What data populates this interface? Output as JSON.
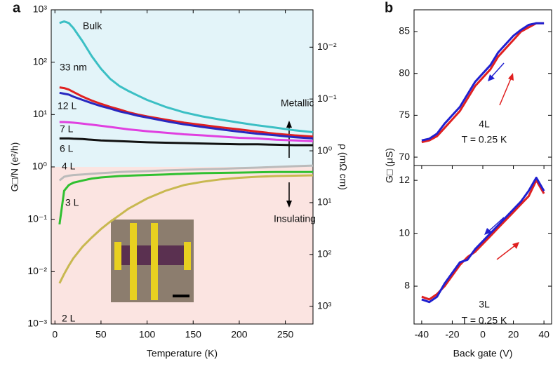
{
  "chart_data": [
    {
      "type": "line",
      "panel_label": "a",
      "x_label": "Temperature (K)",
      "y_label": "G□/N (e²/h)",
      "y2_label": "ρ (mΩ cm)",
      "ylog": true,
      "y2log": true,
      "y2_inverted": true,
      "xlim": [
        -4,
        280
      ],
      "ylim": [
        0.001,
        1000
      ],
      "y2lim": [
        0.0019,
        2200
      ],
      "xticks": [
        0,
        50,
        100,
        150,
        200,
        250
      ],
      "yticks": [
        {
          "value": 0.001,
          "label": "10⁻³"
        },
        {
          "value": 0.01,
          "label": "10⁻²"
        },
        {
          "value": 0.1,
          "label": "10⁻¹"
        },
        {
          "value": 1,
          "label": "10⁰"
        },
        {
          "value": 10,
          "label": "10¹"
        },
        {
          "value": 100,
          "label": "10²"
        },
        {
          "value": 1000,
          "label": "10³"
        }
      ],
      "y2ticks": [
        {
          "value": 0.01,
          "label": "10⁻²"
        },
        {
          "value": 0.1,
          "label": "10⁻¹"
        },
        {
          "value": 1,
          "label": "10⁰"
        },
        {
          "value": 10,
          "label": "10¹"
        },
        {
          "value": 100,
          "label": "10²"
        },
        {
          "value": 1000,
          "label": "10³"
        }
      ],
      "annotations": [
        "Metallic",
        "Insulating"
      ],
      "x": [
        5,
        10,
        15,
        20,
        30,
        40,
        50,
        60,
        70,
        80,
        90,
        100,
        120,
        140,
        160,
        180,
        200,
        220,
        240,
        260,
        280
      ],
      "series": [
        {
          "name": "Bulk",
          "color": "#3bbfc4",
          "values": [
            560,
            600,
            560,
            450,
            250,
            130,
            75,
            48,
            35,
            28,
            23,
            19,
            14,
            11,
            9.2,
            8,
            7,
            6.2,
            5.6,
            5,
            4.6
          ]
        },
        {
          "name": "33 nm",
          "color": "#e02020",
          "values": [
            33,
            32,
            30,
            27,
            22,
            18.5,
            16,
            14,
            12.5,
            11,
            10,
            9.2,
            8,
            7,
            6.3,
            5.7,
            5.2,
            4.7,
            4.3,
            4.0,
            3.8
          ]
        },
        {
          "name": "12 L",
          "color": "#2828c0",
          "values": [
            26,
            25,
            24,
            22,
            19,
            16.5,
            14.5,
            13,
            11.5,
            10.5,
            9.5,
            8.8,
            7.5,
            6.5,
            5.8,
            5.2,
            4.7,
            4.3,
            4,
            3.7,
            3.5
          ]
        },
        {
          "name": "7 L",
          "color": "#e040e0",
          "values": [
            7.2,
            7.2,
            7.1,
            7,
            6.7,
            6.4,
            6.1,
            5.8,
            5.5,
            5.2,
            5,
            4.8,
            4.5,
            4.2,
            4,
            3.8,
            3.6,
            3.5,
            3.3,
            3.2,
            3.1
          ]
        },
        {
          "name": "6 L",
          "color": "#111111",
          "values": [
            3.5,
            3.5,
            3.5,
            3.45,
            3.4,
            3.3,
            3.2,
            3.15,
            3.1,
            3.05,
            3,
            2.95,
            2.9,
            2.85,
            2.8,
            2.75,
            2.7,
            2.7,
            2.65,
            2.6,
            2.6
          ]
        },
        {
          "name": "4 L",
          "color": "#bbbbbb",
          "values": [
            0.55,
            0.65,
            0.68,
            0.7,
            0.72,
            0.74,
            0.76,
            0.78,
            0.8,
            0.81,
            0.82,
            0.83,
            0.86,
            0.88,
            0.9,
            0.92,
            0.95,
            0.97,
            1.0,
            1.03,
            1.06
          ]
        },
        {
          "name": "3 L",
          "color": "#30c030",
          "values": [
            0.08,
            0.35,
            0.45,
            0.5,
            0.55,
            0.6,
            0.63,
            0.65,
            0.67,
            0.68,
            0.69,
            0.7,
            0.72,
            0.74,
            0.76,
            0.77,
            0.78,
            0.79,
            0.8,
            0.8,
            0.8
          ]
        },
        {
          "name": "2 L",
          "color": "#c8b850",
          "values": [
            0.006,
            0.009,
            0.013,
            0.018,
            0.03,
            0.045,
            0.065,
            0.09,
            0.12,
            0.16,
            0.2,
            0.25,
            0.35,
            0.45,
            0.52,
            0.58,
            0.62,
            0.65,
            0.67,
            0.68,
            0.69
          ]
        }
      ]
    },
    {
      "type": "line",
      "panel_label": "b",
      "y_label": "G□ (μS)",
      "xlim": [
        -45,
        45
      ],
      "ylim": [
        69,
        87.6
      ],
      "yticks": [
        70,
        75,
        80,
        85
      ],
      "annotations": [
        "4L",
        "T = 0.25 K"
      ],
      "x": [
        -40,
        -35,
        -30,
        -25,
        -20,
        -15,
        -10,
        -5,
        0,
        5,
        10,
        15,
        20,
        25,
        30,
        35,
        40
      ],
      "series": [
        {
          "color": "#e02020",
          "values": [
            71.8,
            72,
            72.5,
            73.5,
            74.5,
            75.5,
            77,
            78.5,
            79.5,
            80.5,
            82,
            83,
            84,
            85,
            85.5,
            86,
            86
          ]
        },
        {
          "color": "#2020d0",
          "values": [
            72,
            72.2,
            72.8,
            74,
            75,
            76,
            77.5,
            79,
            80,
            81,
            82.5,
            83.5,
            84.5,
            85.2,
            85.8,
            86,
            86
          ]
        }
      ]
    },
    {
      "type": "line",
      "x_label": "Back gate (V)",
      "xlim": [
        -45,
        45
      ],
      "ylim": [
        6.57,
        12.56
      ],
      "xticks": [
        -40,
        -20,
        0,
        20,
        40
      ],
      "yticks": [
        8,
        10,
        12
      ],
      "annotations": [
        "3L",
        "T = 0.25 K"
      ],
      "x": [
        -40,
        -35,
        -30,
        -25,
        -20,
        -15,
        -10,
        -5,
        0,
        5,
        10,
        15,
        20,
        25,
        30,
        35,
        40
      ],
      "series": [
        {
          "color": "#e02020",
          "values": [
            7.6,
            7.5,
            7.7,
            8,
            8.4,
            8.8,
            9.1,
            9.3,
            9.6,
            9.9,
            10.2,
            10.5,
            10.8,
            11.1,
            11.4,
            12,
            11.5
          ]
        },
        {
          "color": "#2020d0",
          "values": [
            7.5,
            7.4,
            7.6,
            8.1,
            8.5,
            8.9,
            9.0,
            9.4,
            9.7,
            10.0,
            10.3,
            10.6,
            10.9,
            11.2,
            11.6,
            12.1,
            11.6
          ]
        }
      ]
    }
  ]
}
